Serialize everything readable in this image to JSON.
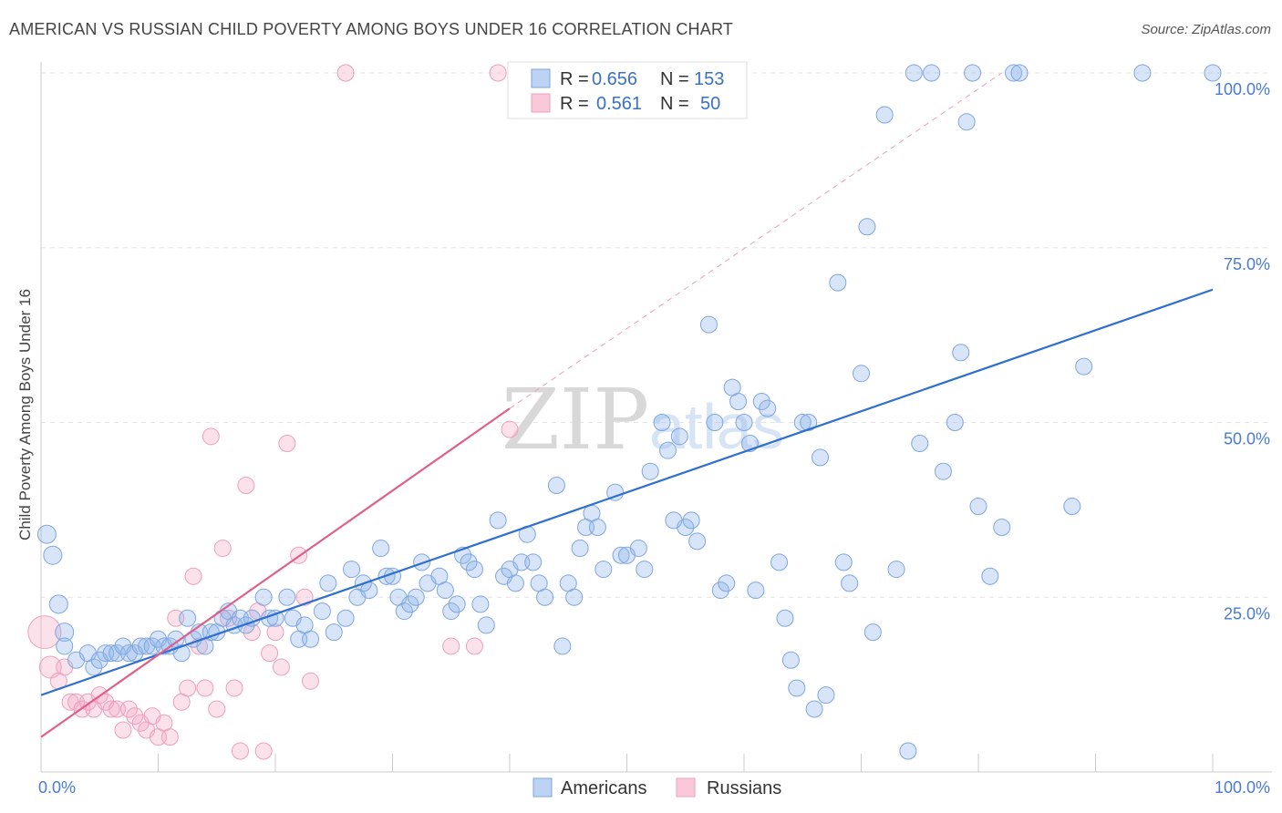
{
  "title": "AMERICAN VS RUSSIAN CHILD POVERTY AMONG BOYS UNDER 16 CORRELATION CHART",
  "source": "Source: ZipAtlas.com",
  "watermark": {
    "zip": "ZIP",
    "atlas": "atlas"
  },
  "colors": {
    "americans": "#8fb4ea",
    "americans_line": "#2f6fd0",
    "russians": "#f4a9c4",
    "russians_line": "#e0608c",
    "tick": "#4a7bd0"
  },
  "legend": {
    "r_label": "R =",
    "n_label": "N =",
    "americans": {
      "r": "0.656",
      "n": "153"
    },
    "russians": {
      "r": "0.561",
      "n": "50"
    }
  },
  "chart_data": {
    "type": "scatter",
    "title": "AMERICAN VS RUSSIAN CHILD POVERTY AMONG BOYS UNDER 16 CORRELATION CHART",
    "xlabel": "",
    "ylabel": "Child Poverty Among Boys Under 16",
    "xlim": [
      0,
      100
    ],
    "ylim": [
      0,
      100
    ],
    "x_tick_labels": [
      "0.0%",
      "100.0%"
    ],
    "y_tick_labels": [
      "25.0%",
      "50.0%",
      "75.0%",
      "100.0%"
    ],
    "y_ticks": [
      25,
      50,
      75,
      100
    ],
    "grid": true,
    "legend_position": "top-center",
    "series": [
      {
        "name": "Americans",
        "r": 0.656,
        "n": 153,
        "trend": {
          "x": [
            0,
            100
          ],
          "y": [
            11,
            69
          ]
        },
        "points": [
          [
            0.5,
            34
          ],
          [
            1,
            31
          ],
          [
            1.5,
            24
          ],
          [
            2,
            20
          ],
          [
            2,
            18
          ],
          [
            3,
            16
          ],
          [
            4,
            17
          ],
          [
            4.5,
            15
          ],
          [
            5,
            16
          ],
          [
            5.5,
            17
          ],
          [
            6,
            17
          ],
          [
            6.5,
            17
          ],
          [
            7,
            18
          ],
          [
            7.5,
            17
          ],
          [
            8,
            17
          ],
          [
            8.5,
            18
          ],
          [
            9,
            18
          ],
          [
            9.5,
            18
          ],
          [
            10,
            19
          ],
          [
            10.5,
            18
          ],
          [
            11,
            18
          ],
          [
            11.5,
            19
          ],
          [
            12,
            17
          ],
          [
            12.5,
            22
          ],
          [
            13,
            19
          ],
          [
            13.5,
            20
          ],
          [
            14,
            18
          ],
          [
            14.5,
            20
          ],
          [
            15,
            20
          ],
          [
            15.5,
            22
          ],
          [
            16,
            23
          ],
          [
            16.5,
            21
          ],
          [
            17,
            22
          ],
          [
            17.5,
            21
          ],
          [
            18,
            22
          ],
          [
            19,
            25
          ],
          [
            19.5,
            22
          ],
          [
            20,
            22
          ],
          [
            21,
            25
          ],
          [
            21.5,
            22
          ],
          [
            22,
            19
          ],
          [
            22.5,
            21
          ],
          [
            23,
            19
          ],
          [
            24,
            23
          ],
          [
            24.5,
            27
          ],
          [
            25,
            20
          ],
          [
            26,
            22
          ],
          [
            26.5,
            29
          ],
          [
            27,
            25
          ],
          [
            27.5,
            27
          ],
          [
            28,
            26
          ],
          [
            29,
            32
          ],
          [
            29.5,
            28
          ],
          [
            30,
            28
          ],
          [
            30.5,
            25
          ],
          [
            31,
            23
          ],
          [
            31.5,
            24
          ],
          [
            32,
            25
          ],
          [
            32.5,
            30
          ],
          [
            33,
            27
          ],
          [
            34,
            28
          ],
          [
            34.5,
            26
          ],
          [
            35,
            23
          ],
          [
            35.5,
            24
          ],
          [
            36,
            31
          ],
          [
            36.5,
            30
          ],
          [
            37,
            29
          ],
          [
            37.5,
            24
          ],
          [
            38,
            21
          ],
          [
            39,
            36
          ],
          [
            39.5,
            28
          ],
          [
            40,
            29
          ],
          [
            40.5,
            27
          ],
          [
            41,
            30
          ],
          [
            41.5,
            34
          ],
          [
            42,
            30
          ],
          [
            42.5,
            27
          ],
          [
            43,
            25
          ],
          [
            44,
            41
          ],
          [
            44.5,
            18
          ],
          [
            45,
            27
          ],
          [
            45.5,
            25
          ],
          [
            46,
            32
          ],
          [
            46.5,
            35
          ],
          [
            47,
            37
          ],
          [
            47.5,
            35
          ],
          [
            48,
            29
          ],
          [
            49,
            40
          ],
          [
            49.5,
            31
          ],
          [
            50,
            31
          ],
          [
            51,
            32
          ],
          [
            51.5,
            29
          ],
          [
            52,
            43
          ],
          [
            53,
            50
          ],
          [
            53.5,
            46
          ],
          [
            54,
            36
          ],
          [
            54.5,
            48
          ],
          [
            55,
            35
          ],
          [
            55.5,
            36
          ],
          [
            56,
            33
          ],
          [
            57,
            64
          ],
          [
            57.5,
            50
          ],
          [
            58,
            26
          ],
          [
            58.5,
            27
          ],
          [
            59,
            55
          ],
          [
            59.5,
            53
          ],
          [
            60,
            50
          ],
          [
            60.5,
            47
          ],
          [
            61,
            26
          ],
          [
            61.5,
            53
          ],
          [
            62,
            52
          ],
          [
            63,
            30
          ],
          [
            63.5,
            22
          ],
          [
            64,
            16
          ],
          [
            64.5,
            12
          ],
          [
            65,
            50
          ],
          [
            65.5,
            50
          ],
          [
            66,
            9
          ],
          [
            66.5,
            45
          ],
          [
            67,
            11
          ],
          [
            68,
            70
          ],
          [
            68.5,
            30
          ],
          [
            69,
            27
          ],
          [
            70,
            57
          ],
          [
            70.5,
            78
          ],
          [
            71,
            20
          ],
          [
            72,
            94
          ],
          [
            73,
            29
          ],
          [
            74,
            3
          ],
          [
            74.5,
            100
          ],
          [
            75,
            47
          ],
          [
            76,
            100
          ],
          [
            77,
            43
          ],
          [
            78,
            50
          ],
          [
            78.5,
            60
          ],
          [
            79,
            93
          ],
          [
            79.5,
            100
          ],
          [
            80,
            38
          ],
          [
            81,
            28
          ],
          [
            82,
            35
          ],
          [
            83,
            100
          ],
          [
            83.5,
            100
          ],
          [
            88,
            38
          ],
          [
            89,
            58
          ],
          [
            94,
            100
          ],
          [
            100,
            100
          ]
        ]
      },
      {
        "name": "Russians",
        "r": 0.561,
        "n": 50,
        "trend": {
          "x": [
            0,
            40
          ],
          "y": [
            5,
            52
          ]
        },
        "trend_dashed": {
          "x": [
            40,
            82
          ],
          "y": [
            52,
            100
          ]
        },
        "points": [
          [
            0.3,
            20
          ],
          [
            0.8,
            15
          ],
          [
            1.5,
            13
          ],
          [
            2,
            15
          ],
          [
            2.5,
            10
          ],
          [
            3,
            10
          ],
          [
            3.5,
            9
          ],
          [
            4,
            10
          ],
          [
            4.5,
            9
          ],
          [
            5,
            11
          ],
          [
            5.5,
            10
          ],
          [
            6,
            9
          ],
          [
            6.5,
            9
          ],
          [
            7,
            6
          ],
          [
            7.5,
            9
          ],
          [
            8,
            8
          ],
          [
            8.5,
            7
          ],
          [
            9,
            6
          ],
          [
            9.5,
            8
          ],
          [
            10,
            5
          ],
          [
            10.5,
            7
          ],
          [
            11,
            5
          ],
          [
            11.5,
            22
          ],
          [
            12,
            10
          ],
          [
            12.5,
            12
          ],
          [
            13,
            28
          ],
          [
            13.5,
            18
          ],
          [
            14,
            12
          ],
          [
            14.5,
            48
          ],
          [
            15,
            9
          ],
          [
            15.5,
            32
          ],
          [
            16,
            22
          ],
          [
            16.5,
            12
          ],
          [
            17,
            3
          ],
          [
            17.5,
            41
          ],
          [
            18,
            20
          ],
          [
            18.5,
            23
          ],
          [
            19,
            3
          ],
          [
            19.5,
            17
          ],
          [
            20,
            20
          ],
          [
            20.5,
            15
          ],
          [
            21,
            47
          ],
          [
            22,
            31
          ],
          [
            22.5,
            25
          ],
          [
            23,
            13
          ],
          [
            26,
            100
          ],
          [
            35,
            18
          ],
          [
            37,
            18
          ],
          [
            39,
            100
          ],
          [
            40,
            49
          ]
        ]
      }
    ]
  },
  "bottom_legend": {
    "americans": "Americans",
    "russians": "Russians"
  }
}
